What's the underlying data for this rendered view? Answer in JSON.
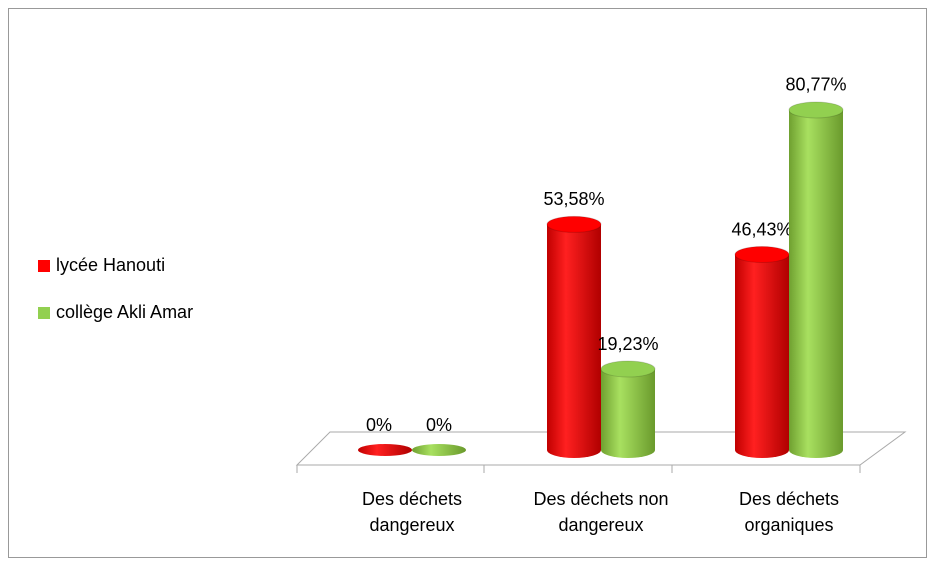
{
  "chart_data": {
    "type": "bar3d",
    "categories": [
      "Des déchets dangereux",
      "Des déchets non dangereux",
      "Des déchets organiques"
    ],
    "series": [
      {
        "name": "lycée Hanouti",
        "color": "#ff0000",
        "values": [
          0,
          53.58,
          46.43
        ],
        "value_labels": [
          "0%",
          "53,58%",
          "46,43%"
        ]
      },
      {
        "name": "collège Akli Amar",
        "color": "#92d050",
        "values": [
          0,
          19.23,
          80.77
        ],
        "value_labels": [
          "0%",
          "19,23%",
          "80,77%"
        ]
      }
    ],
    "ylim": [
      0,
      100
    ],
    "legend": "left"
  }
}
